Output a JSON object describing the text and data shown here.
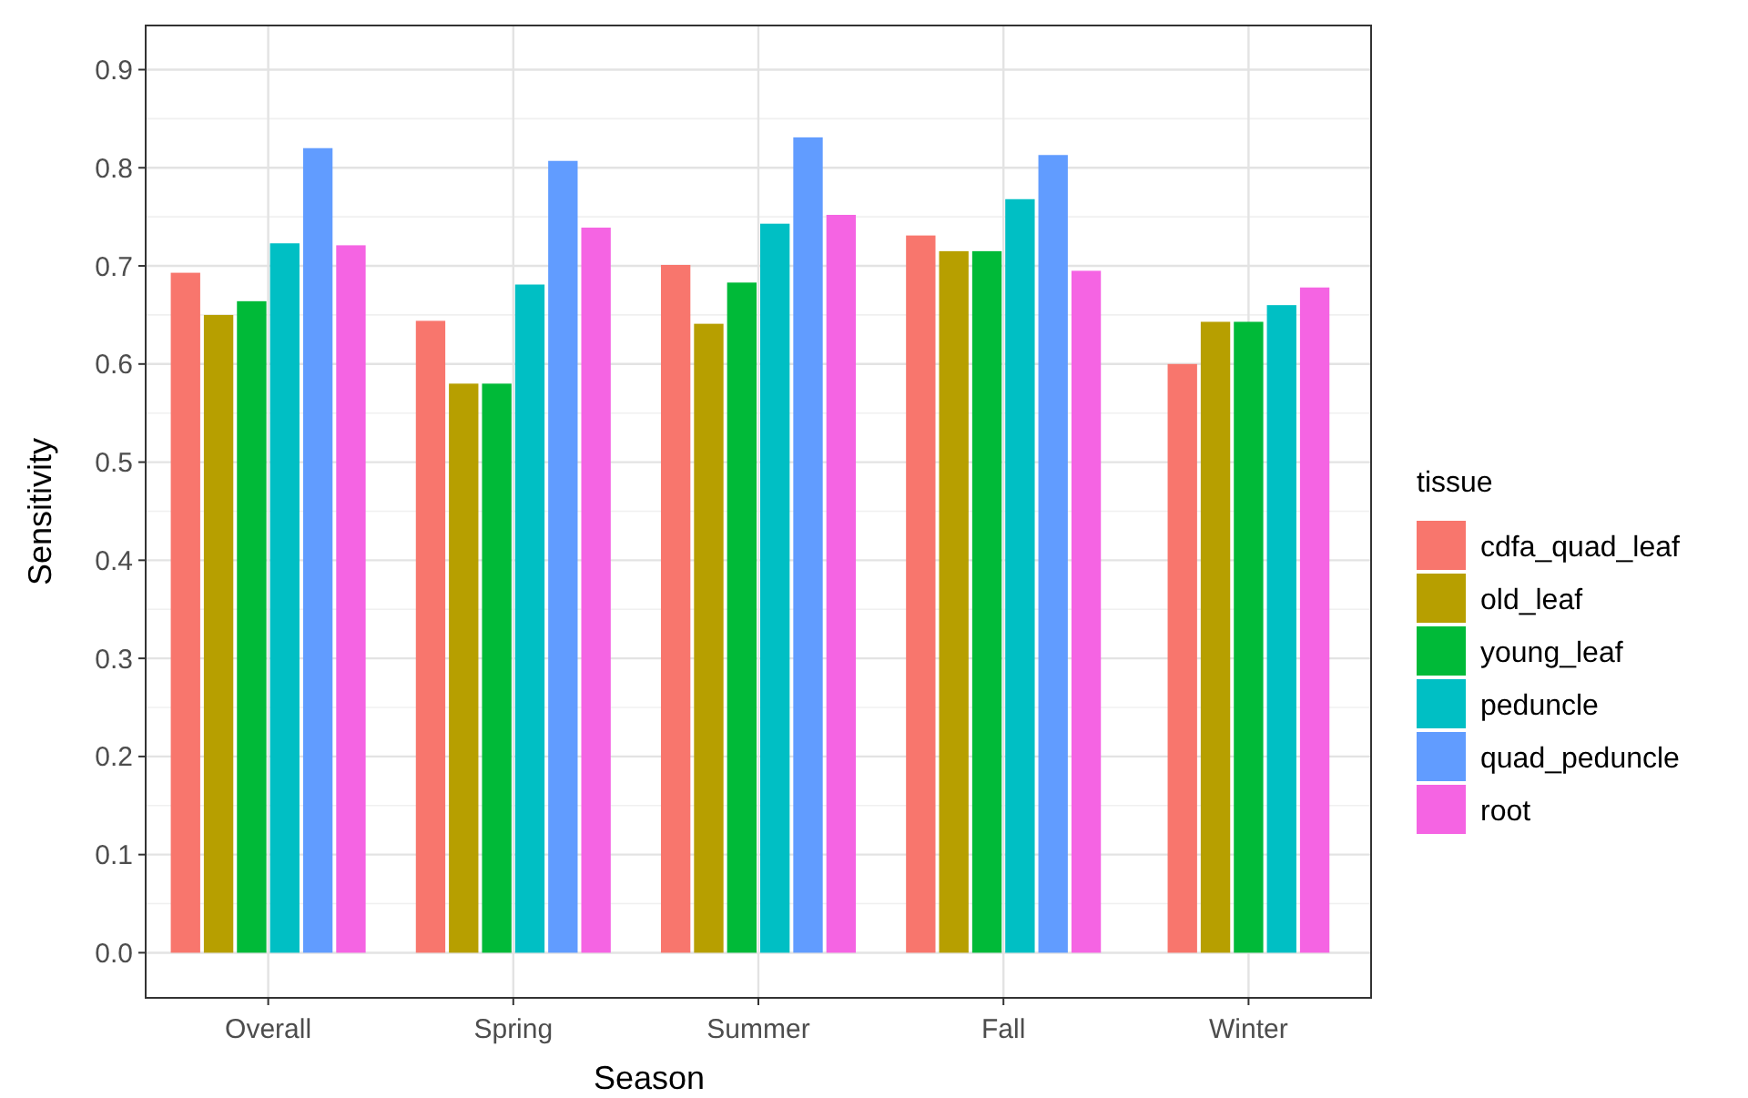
{
  "chart_data": {
    "type": "bar",
    "xlabel": "Season",
    "ylabel": "Sensitivity",
    "legend_title": "tissue",
    "legend": "right",
    "grid": true,
    "categories": [
      "Overall",
      "Spring",
      "Summer",
      "Fall",
      "Winter"
    ],
    "ylim": [
      -0.046,
      0.945
    ],
    "yticks": [
      {
        "value": 0,
        "label": "0.0"
      },
      0.1,
      0.2,
      0.3,
      0.4,
      0.5,
      0.6,
      0.7,
      0.8,
      0.9
    ],
    "series": [
      {
        "name": "cdfa_quad_leaf",
        "color": "#f8766d",
        "values": [
          0.693,
          0.644,
          0.701,
          0.731,
          0.6
        ]
      },
      {
        "name": "old_leaf",
        "color": "#b79f00",
        "values": [
          0.65,
          0.58,
          0.641,
          0.715,
          0.643
        ]
      },
      {
        "name": "young_leaf",
        "color": "#00ba38",
        "values": [
          0.664,
          0.58,
          0.683,
          0.715,
          0.643
        ]
      },
      {
        "name": "peduncle",
        "color": "#00bfc4",
        "values": [
          0.723,
          0.681,
          0.743,
          0.768,
          0.66
        ]
      },
      {
        "name": "quad_peduncle",
        "color": "#619cff",
        "values": [
          0.82,
          0.807,
          0.831,
          0.813,
          null
        ]
      },
      {
        "name": "root",
        "color": "#f564e3",
        "values": [
          0.721,
          0.739,
          0.752,
          0.695,
          0.678
        ]
      }
    ]
  }
}
